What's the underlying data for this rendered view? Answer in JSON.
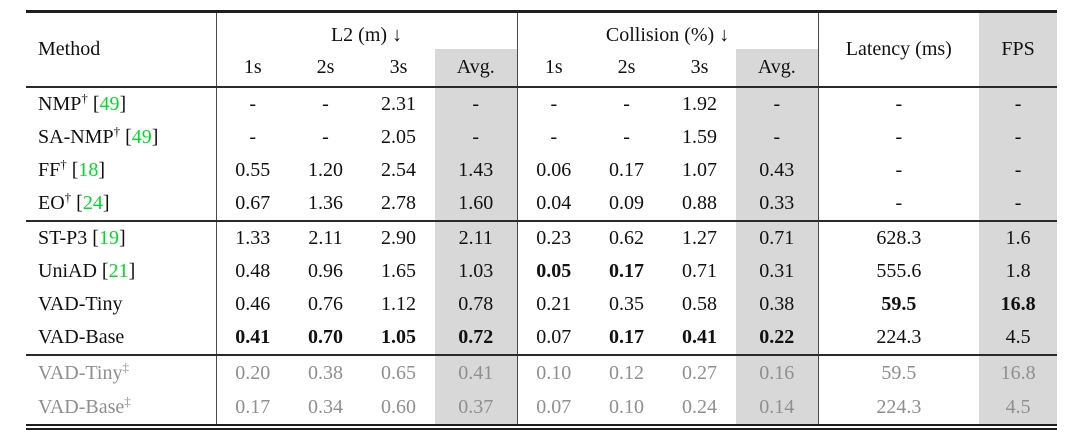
{
  "colors": {
    "citation_green": "#00dd22",
    "shade_gray": "#d8d8d8",
    "muted_text": "#8f8f8f"
  },
  "table": {
    "header": {
      "method": "Method",
      "l2_group": "L2 (m) ↓",
      "collision_group": "Collision (%) ↓",
      "latency": "Latency (ms)",
      "fps": "FPS",
      "sub": [
        "1s",
        "2s",
        "3s",
        "Avg."
      ]
    },
    "groups": [
      {
        "rows": [
          {
            "method": "NMP",
            "sup": "†",
            "cite": "49",
            "muted": false,
            "values": [
              "-",
              "-",
              "2.31",
              "-",
              "-",
              "-",
              "1.92",
              "-",
              "-",
              "-"
            ],
            "bold": []
          },
          {
            "method": "SA-NMP",
            "sup": "†",
            "cite": "49",
            "muted": false,
            "values": [
              "-",
              "-",
              "2.05",
              "-",
              "-",
              "-",
              "1.59",
              "-",
              "-",
              "-"
            ],
            "bold": []
          },
          {
            "method": "FF",
            "sup": "†",
            "cite": "18",
            "muted": false,
            "values": [
              "0.55",
              "1.20",
              "2.54",
              "1.43",
              "0.06",
              "0.17",
              "1.07",
              "0.43",
              "-",
              "-"
            ],
            "bold": []
          },
          {
            "method": "EO",
            "sup": "†",
            "cite": "24",
            "muted": false,
            "values": [
              "0.67",
              "1.36",
              "2.78",
              "1.60",
              "0.04",
              "0.09",
              "0.88",
              "0.33",
              "-",
              "-"
            ],
            "bold": []
          }
        ]
      },
      {
        "rows": [
          {
            "method": "ST-P3",
            "sup": "",
            "cite": "19",
            "muted": false,
            "values": [
              "1.33",
              "2.11",
              "2.90",
              "2.11",
              "0.23",
              "0.62",
              "1.27",
              "0.71",
              "628.3",
              "1.6"
            ],
            "bold": []
          },
          {
            "method": "UniAD",
            "sup": "",
            "cite": "21",
            "muted": false,
            "values": [
              "0.48",
              "0.96",
              "1.65",
              "1.03",
              "0.05",
              "0.17",
              "0.71",
              "0.31",
              "555.6",
              "1.8"
            ],
            "bold": [
              4,
              5
            ]
          },
          {
            "method": "VAD-Tiny",
            "sup": "",
            "cite": "",
            "muted": false,
            "values": [
              "0.46",
              "0.76",
              "1.12",
              "0.78",
              "0.21",
              "0.35",
              "0.58",
              "0.38",
              "59.5",
              "16.8"
            ],
            "bold": [
              8,
              9
            ]
          },
          {
            "method": "VAD-Base",
            "sup": "",
            "cite": "",
            "muted": false,
            "values": [
              "0.41",
              "0.70",
              "1.05",
              "0.72",
              "0.07",
              "0.17",
              "0.41",
              "0.22",
              "224.3",
              "4.5"
            ],
            "bold": [
              0,
              1,
              2,
              3,
              5,
              6,
              7
            ]
          }
        ]
      },
      {
        "rows": [
          {
            "method": "VAD-Tiny",
            "sup": "‡",
            "cite": "",
            "muted": true,
            "values": [
              "0.20",
              "0.38",
              "0.65",
              "0.41",
              "0.10",
              "0.12",
              "0.27",
              "0.16",
              "59.5",
              "16.8"
            ],
            "bold": []
          },
          {
            "method": "VAD-Base",
            "sup": "‡",
            "cite": "",
            "muted": true,
            "values": [
              "0.17",
              "0.34",
              "0.60",
              "0.37",
              "0.07",
              "0.10",
              "0.24",
              "0.14",
              "224.3",
              "4.5"
            ],
            "bold": []
          }
        ]
      }
    ]
  }
}
